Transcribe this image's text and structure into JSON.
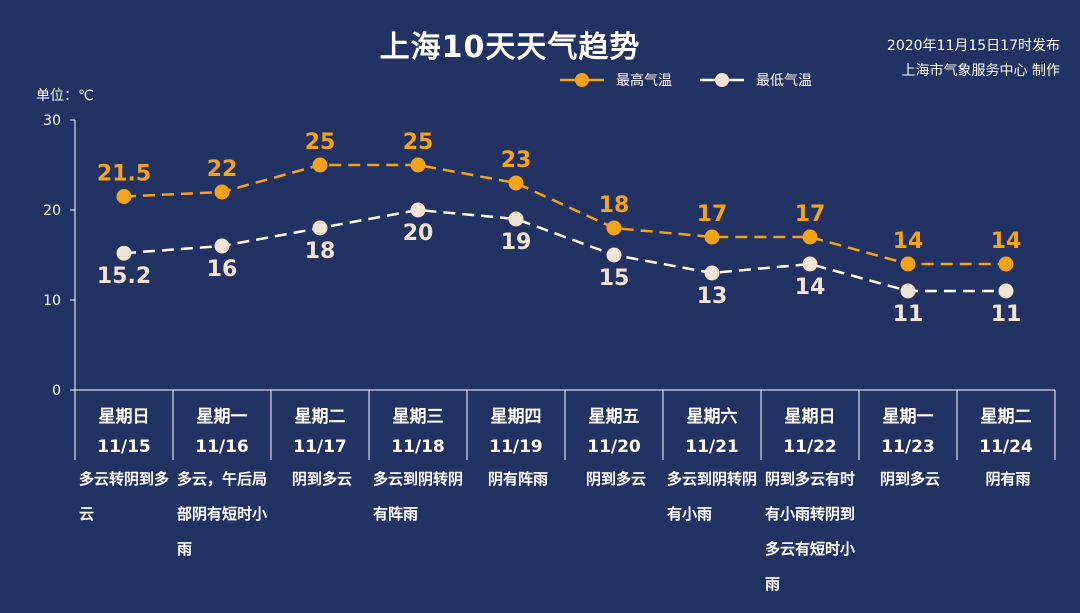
{
  "header": {
    "title": "上海10天天气趋势",
    "publish_time": "2020年11月15日17时发布",
    "publisher": "上海市气象服务中心 制作",
    "unit_label": "单位：℃"
  },
  "colors": {
    "background": "#223263",
    "high": "#f5a418",
    "low": "#ffffff",
    "low_marker": "#f2e3d5"
  },
  "chart_data": {
    "type": "line",
    "title": "上海10天天气趋势",
    "ylim": [
      0,
      30
    ],
    "yticks": [
      "0",
      "10",
      "20",
      "30"
    ],
    "grid": false,
    "legend_position": "top-right",
    "categories": [
      {
        "weekday": "星期日",
        "date": "11/15",
        "desc": "多云转阴到多云"
      },
      {
        "weekday": "星期一",
        "date": "11/16",
        "desc": "多云，午后局部阴有短时小雨"
      },
      {
        "weekday": "星期二",
        "date": "11/17",
        "desc": "阴到多云"
      },
      {
        "weekday": "星期三",
        "date": "11/18",
        "desc": "多云到阴转阴有阵雨"
      },
      {
        "weekday": "星期四",
        "date": "11/19",
        "desc": "阴有阵雨"
      },
      {
        "weekday": "星期五",
        "date": "11/20",
        "desc": "阴到多云"
      },
      {
        "weekday": "星期六",
        "date": "11/21",
        "desc": "多云到阴转阴有小雨"
      },
      {
        "weekday": "星期日",
        "date": "11/22",
        "desc": "阴到多云有时有小雨转阴到多云有短时小雨"
      },
      {
        "weekday": "星期一",
        "date": "11/23",
        "desc": "阴到多云"
      },
      {
        "weekday": "星期二",
        "date": "11/24",
        "desc": "阴有雨"
      }
    ],
    "series": [
      {
        "name": "最高气温",
        "labels": [
          "21.5",
          "22",
          "25",
          "25",
          "23",
          "18",
          "17",
          "17",
          "14",
          "14"
        ],
        "values": [
          21.5,
          22,
          25,
          25,
          23,
          18,
          17,
          17,
          14,
          14
        ]
      },
      {
        "name": "最低气温",
        "labels": [
          "15.2",
          "16",
          "18",
          "20",
          "19",
          "15",
          "13",
          "14",
          "11",
          "11"
        ],
        "values": [
          15.2,
          16,
          18,
          20,
          19,
          15,
          13,
          14,
          11,
          11
        ]
      }
    ]
  }
}
